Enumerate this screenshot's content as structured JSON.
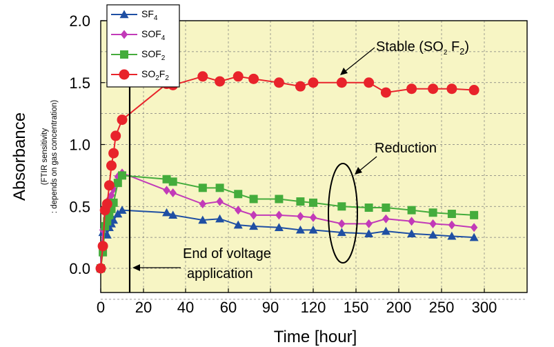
{
  "chart_data": {
    "type": "line",
    "xlabel": "Time [hour]",
    "ylabel": "Absorbance",
    "ylabel_note": [
      "(FTIR sensitivity",
      ": depends on gas concentration)"
    ],
    "x_tick_labels": [
      "0",
      "20",
      "40",
      "60",
      "90",
      "120",
      "150",
      "200",
      "250",
      "300"
    ],
    "y_tick_labels": [
      "0.0",
      "0.5",
      "1.0",
      "1.5",
      "2.0"
    ],
    "ylim": [
      -0.3,
      2.0
    ],
    "grid": true,
    "legend_position": "top-left",
    "background_color": "#f7f5c4",
    "series": [
      {
        "name_main": "SF",
        "name_sub": "4",
        "color": "#1f4fa3",
        "marker": "triangle",
        "points": [
          [
            0,
            0.0
          ],
          [
            1,
            0.29
          ],
          [
            2,
            0.33
          ],
          [
            3,
            0.27
          ],
          [
            4,
            0.33
          ],
          [
            5,
            0.36
          ],
          [
            6,
            0.39
          ],
          [
            8,
            0.44
          ],
          [
            10,
            0.47
          ],
          [
            31,
            0.45
          ],
          [
            34,
            0.43
          ],
          [
            48,
            0.39
          ],
          [
            56,
            0.4
          ],
          [
            67,
            0.35
          ],
          [
            78,
            0.34
          ],
          [
            96,
            0.33
          ],
          [
            111,
            0.31
          ],
          [
            120,
            0.31
          ],
          [
            140,
            0.29
          ],
          [
            165,
            0.28
          ],
          [
            185,
            0.3
          ],
          [
            215,
            0.28
          ],
          [
            240,
            0.27
          ],
          [
            262,
            0.26
          ],
          [
            288,
            0.25
          ]
        ]
      },
      {
        "name_main": "SOF",
        "name_sub": "4",
        "color": "#c23ab8",
        "marker": "diamond",
        "points": [
          [
            0,
            0.0
          ],
          [
            1,
            0.31
          ],
          [
            2,
            0.48
          ],
          [
            3,
            0.48
          ],
          [
            4,
            0.56
          ],
          [
            5,
            0.59
          ],
          [
            6,
            0.64
          ],
          [
            8,
            0.74
          ],
          [
            10,
            0.77
          ],
          [
            31,
            0.63
          ],
          [
            34,
            0.61
          ],
          [
            48,
            0.52
          ],
          [
            56,
            0.54
          ],
          [
            67,
            0.47
          ],
          [
            78,
            0.43
          ],
          [
            96,
            0.43
          ],
          [
            111,
            0.42
          ],
          [
            120,
            0.41
          ],
          [
            140,
            0.36
          ],
          [
            165,
            0.36
          ],
          [
            185,
            0.4
          ],
          [
            215,
            0.38
          ],
          [
            240,
            0.36
          ],
          [
            262,
            0.35
          ],
          [
            288,
            0.33
          ]
        ]
      },
      {
        "name_main": "SOF",
        "name_sub": "2",
        "color": "#44ac3c",
        "marker": "square",
        "points": [
          [
            0,
            0.0
          ],
          [
            1,
            0.13
          ],
          [
            2,
            0.34
          ],
          [
            3,
            0.38
          ],
          [
            4,
            0.43
          ],
          [
            5,
            0.48
          ],
          [
            6,
            0.53
          ],
          [
            8,
            0.69
          ],
          [
            10,
            0.75
          ],
          [
            31,
            0.72
          ],
          [
            34,
            0.7
          ],
          [
            48,
            0.65
          ],
          [
            56,
            0.65
          ],
          [
            67,
            0.6
          ],
          [
            78,
            0.56
          ],
          [
            96,
            0.56
          ],
          [
            111,
            0.54
          ],
          [
            120,
            0.53
          ],
          [
            140,
            0.5
          ],
          [
            165,
            0.49
          ],
          [
            185,
            0.49
          ],
          [
            215,
            0.47
          ],
          [
            240,
            0.45
          ],
          [
            262,
            0.44
          ],
          [
            288,
            0.43
          ]
        ]
      },
      {
        "name_main": "SO",
        "name_sub": "2",
        "name_tail": "F",
        "name_sub2": "2",
        "color": "#e8232b",
        "marker": "circle",
        "points": [
          [
            0,
            0.0
          ],
          [
            1,
            0.18
          ],
          [
            2,
            0.47
          ],
          [
            3,
            0.52
          ],
          [
            4,
            0.67
          ],
          [
            5,
            0.83
          ],
          [
            6,
            0.93
          ],
          [
            7,
            1.07
          ],
          [
            10,
            1.2
          ],
          [
            31,
            1.49
          ],
          [
            34,
            1.48
          ],
          [
            48,
            1.55
          ],
          [
            56,
            1.51
          ],
          [
            67,
            1.55
          ],
          [
            78,
            1.53
          ],
          [
            96,
            1.5
          ],
          [
            111,
            1.47
          ],
          [
            120,
            1.5
          ],
          [
            140,
            1.5
          ],
          [
            165,
            1.5
          ],
          [
            185,
            1.42
          ],
          [
            215,
            1.45
          ],
          [
            240,
            1.45
          ],
          [
            262,
            1.45
          ],
          [
            288,
            1.44
          ]
        ]
      }
    ],
    "annotations": {
      "stable": {
        "prefix": "Stable (SO",
        "sub1": "2",
        "mid": " F",
        "sub2": "2",
        "suffix": ")"
      },
      "reduction": "Reduction",
      "voltage_line1": "End of voltage",
      "voltage_line2": "application"
    }
  }
}
